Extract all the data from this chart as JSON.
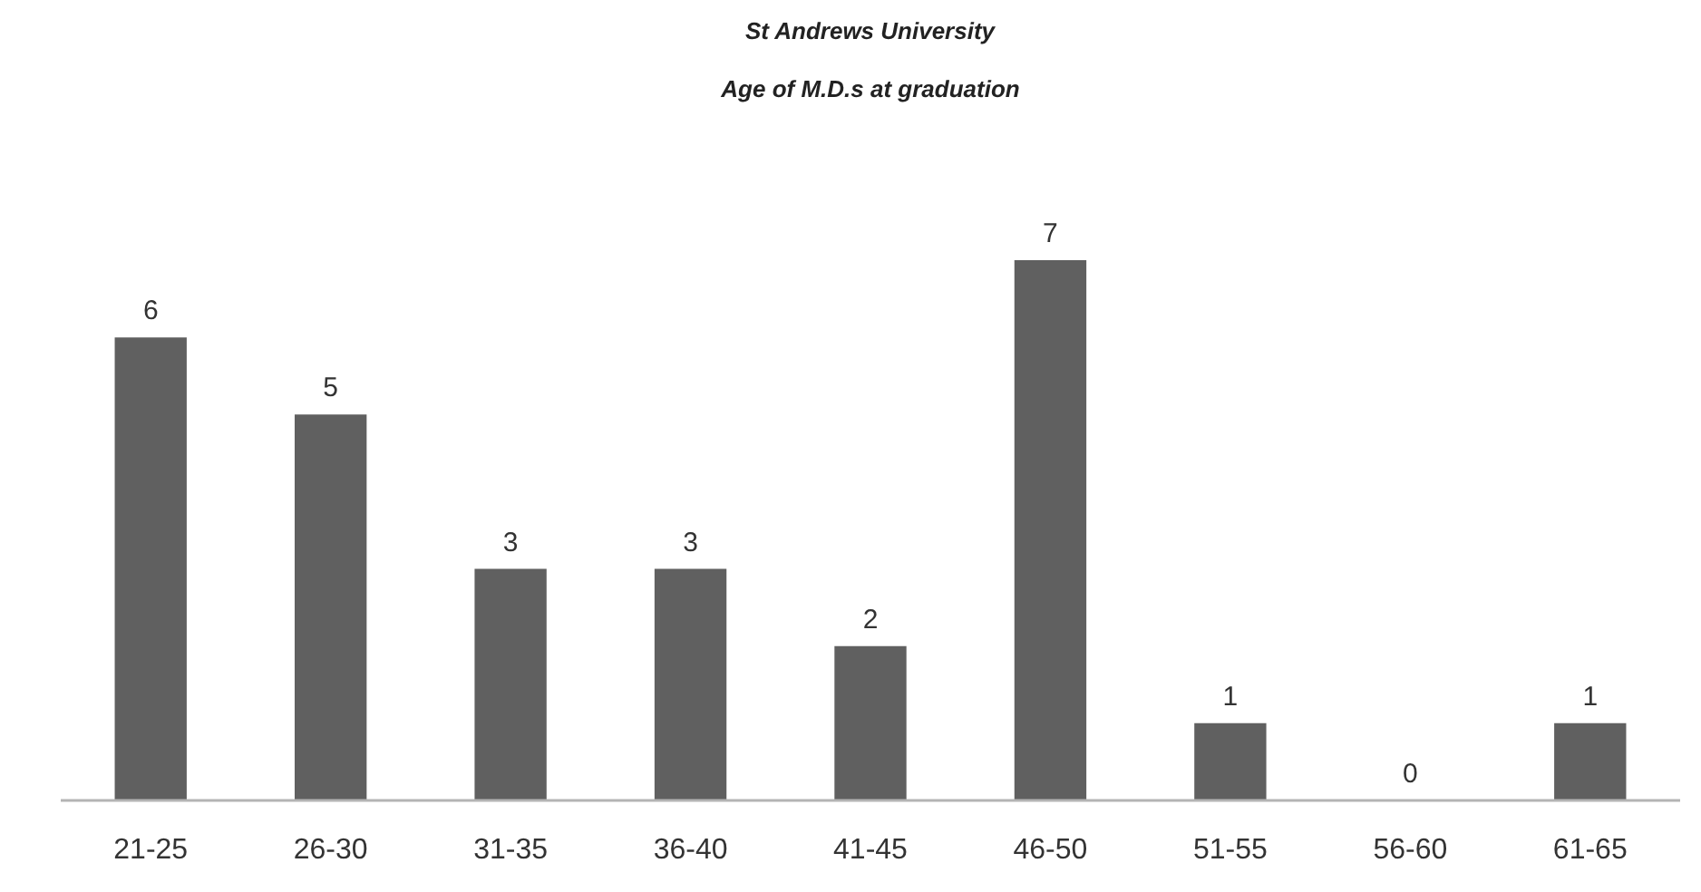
{
  "chart_data": {
    "type": "bar",
    "title": "St Andrews University",
    "subtitle": "Age of M.D.s at graduation",
    "categories": [
      "21-25",
      "26-30",
      "31-35",
      "36-40",
      "41-45",
      "46-50",
      "51-55",
      "56-60",
      "61-65"
    ],
    "values": [
      6,
      5,
      3,
      3,
      2,
      7,
      1,
      0,
      1
    ],
    "color": "#606060",
    "data_labels": true
  }
}
